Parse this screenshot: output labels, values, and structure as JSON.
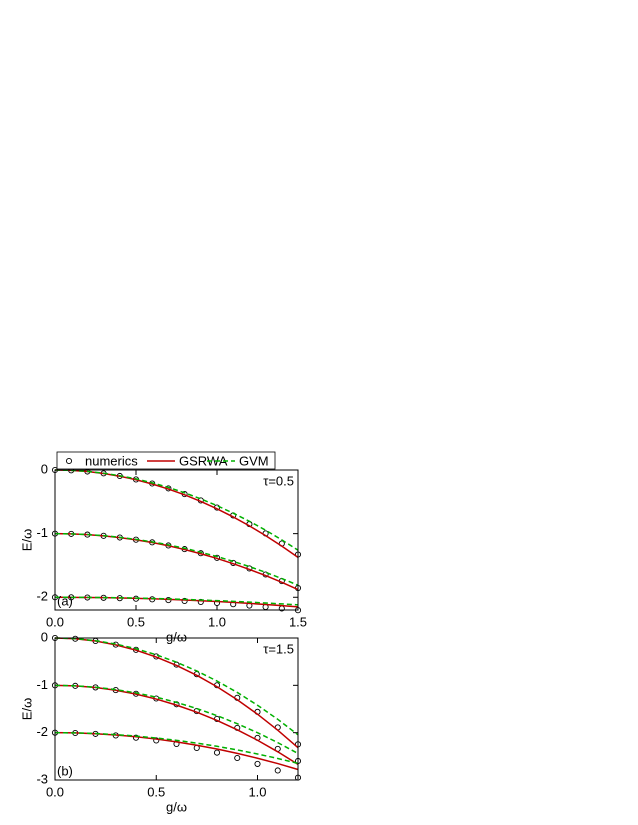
{
  "chart_data": [
    {
      "type": "line",
      "annotation": "τ=0.5",
      "panel_label": "(a)",
      "xlabel": "g/ω",
      "ylabel": "E/ω",
      "legend": "top",
      "xlim": [
        0,
        1.5
      ],
      "ylim": [
        -2.2,
        0
      ],
      "xticks": [
        {
          "value": 0,
          "label": "0.0"
        },
        0.5,
        {
          "value": 1,
          "label": "1.0"
        },
        1.5
      ],
      "yticks": [
        0,
        -1,
        -2
      ],
      "x": [
        0,
        0.1,
        0.2,
        0.3,
        0.4,
        0.5,
        0.6,
        0.7,
        0.8,
        0.9,
        1.0,
        1.1,
        1.2,
        1.3,
        1.4,
        1.5
      ],
      "series": [
        {
          "name": "numerics",
          "color": "#000000",
          "line_style": "none",
          "values": [
            [
              0,
              -0.006,
              -0.024,
              -0.053,
              -0.094,
              -0.148,
              -0.212,
              -0.289,
              -0.378,
              -0.478,
              -0.59,
              -0.714,
              -0.85,
              -0.997,
              -1.156,
              -1.328
            ],
            [
              -1,
              -1.004,
              -1.015,
              -1.034,
              -1.061,
              -1.095,
              -1.137,
              -1.186,
              -1.243,
              -1.308,
              -1.38,
              -1.46,
              -1.547,
              -1.642,
              -1.745,
              -1.855
            ],
            [
              -2,
              -2.001,
              -2.004,
              -2.008,
              -2.014,
              -2.023,
              -2.032,
              -2.044,
              -2.058,
              -2.073,
              -2.09,
              -2.109,
              -2.13,
              -2.152,
              -2.176,
              -2.203
            ]
          ]
        },
        {
          "name": "GSRWA",
          "color": "#c00000",
          "line_style": "solid",
          "values": [
            [
              0,
              -0.006,
              -0.024,
              -0.055,
              -0.098,
              -0.153,
              -0.22,
              -0.299,
              -0.39,
              -0.494,
              -0.61,
              -0.738,
              -0.878,
              -1.031,
              -1.196,
              -1.373
            ],
            [
              -1,
              -1.004,
              -1.016,
              -1.035,
              -1.062,
              -1.098,
              -1.14,
              -1.191,
              -1.25,
              -1.316,
              -1.39,
              -1.472,
              -1.562,
              -1.659,
              -1.764,
              -1.878
            ],
            [
              -2,
              -2.001,
              -2.003,
              -2.006,
              -2.011,
              -2.017,
              -2.024,
              -2.033,
              -2.043,
              -2.054,
              -2.067,
              -2.081,
              -2.096,
              -2.113,
              -2.131,
              -2.151
            ]
          ]
        },
        {
          "name": "GVM",
          "color": "#00b000",
          "line_style": "dashed",
          "values": [
            [
              0,
              -0.006,
              -0.022,
              -0.05,
              -0.09,
              -0.14,
              -0.202,
              -0.274,
              -0.358,
              -0.454,
              -0.56,
              -0.678,
              -0.806,
              -0.946,
              -1.098,
              -1.26
            ],
            [
              -1,
              -1.004,
              -1.014,
              -1.032,
              -1.058,
              -1.09,
              -1.13,
              -1.176,
              -1.23,
              -1.292,
              -1.36,
              -1.436,
              -1.518,
              -1.608,
              -1.706,
              -1.81
            ],
            [
              -2,
              -2.001,
              -2.002,
              -2.005,
              -2.008,
              -2.013,
              -2.019,
              -2.026,
              -2.034,
              -2.043,
              -2.053,
              -2.064,
              -2.076,
              -2.09,
              -2.104,
              -2.119
            ]
          ]
        }
      ]
    },
    {
      "type": "line",
      "annotation": "τ=1.5",
      "panel_label": "(b)",
      "xlabel": "g/ω",
      "ylabel": "E/ω",
      "xlim": [
        0,
        1.2
      ],
      "ylim": [
        -3,
        0
      ],
      "xticks": [
        {
          "value": 0,
          "label": "0.0"
        },
        0.5,
        {
          "value": 1,
          "label": "1.0"
        }
      ],
      "yticks": [
        0,
        -1,
        -2,
        -3
      ],
      "x": [
        0,
        0.1,
        0.2,
        0.3,
        0.4,
        0.5,
        0.6,
        0.7,
        0.8,
        0.9,
        1.0,
        1.1,
        1.2
      ],
      "series": [
        {
          "color": "#000000",
          "line_style": "none",
          "values": [
            [
              0,
              -0.016,
              -0.062,
              -0.14,
              -0.25,
              -0.39,
              -0.562,
              -0.764,
              -0.998,
              -1.264,
              -1.56,
              -1.888,
              -2.246
            ],
            [
              -1,
              -1.011,
              -1.044,
              -1.1,
              -1.178,
              -1.278,
              -1.4,
              -1.544,
              -1.71,
              -1.899,
              -2.11,
              -2.343,
              -2.598
            ],
            [
              -2,
              -2.007,
              -2.026,
              -2.059,
              -2.106,
              -2.165,
              -2.238,
              -2.323,
              -2.422,
              -2.535,
              -2.66,
              -2.799,
              -2.95
            ]
          ]
        },
        {
          "color": "#c00000",
          "line_style": "solid",
          "values": [
            [
              0,
              -0.016,
              -0.064,
              -0.145,
              -0.258,
              -0.403,
              -0.58,
              -0.789,
              -1.03,
              -1.304,
              -1.61,
              -1.948,
              -2.318
            ],
            [
              -1,
              -1.012,
              -1.046,
              -1.104,
              -1.186,
              -1.29,
              -1.418,
              -1.568,
              -1.742,
              -1.94,
              -2.16,
              -2.404,
              -2.67
            ],
            [
              -2,
              -2.005,
              -2.022,
              -2.049,
              -2.086,
              -2.135,
              -2.194,
              -2.265,
              -2.346,
              -2.437,
              -2.54,
              -2.653,
              -2.778
            ]
          ]
        },
        {
          "color": "#00b000",
          "line_style": "dashed",
          "values": [
            [
              0,
              -0.014,
              -0.057,
              -0.128,
              -0.227,
              -0.355,
              -0.511,
              -0.696,
              -0.909,
              -1.15,
              -1.42,
              -1.718,
              -2.045
            ],
            [
              -1,
              -1.01,
              -1.04,
              -1.09,
              -1.16,
              -1.25,
              -1.36,
              -1.49,
              -1.64,
              -1.81,
              -2,
              -2.21,
              -2.44
            ],
            [
              -2,
              -2.005,
              -2.018,
              -2.041,
              -2.072,
              -2.113,
              -2.162,
              -2.221,
              -2.288,
              -2.365,
              -2.45,
              -2.545,
              -2.648
            ]
          ]
        }
      ]
    }
  ]
}
